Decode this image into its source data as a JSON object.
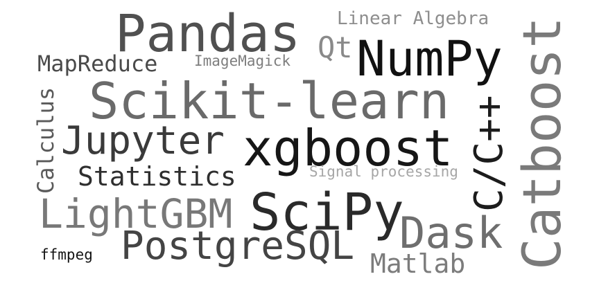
{
  "words": [
    {
      "id": "pandas",
      "text": "Pandas",
      "color": "#505050"
    },
    {
      "id": "numpy",
      "text": "NumPy",
      "color": "#111111"
    },
    {
      "id": "scikit-learn",
      "text": "Scikit-learn",
      "color": "#6a6a6a"
    },
    {
      "id": "xgboost",
      "text": "xgboost",
      "color": "#161616"
    },
    {
      "id": "catboost",
      "text": "Catboost",
      "color": "#7a7a7a"
    },
    {
      "id": "cpp",
      "text": "C/C++",
      "color": "#1c1c1c"
    },
    {
      "id": "jupyter",
      "text": "Jupyter",
      "color": "#3a3a3a"
    },
    {
      "id": "scipy",
      "text": "SciPy",
      "color": "#2a2a2a"
    },
    {
      "id": "lightgbm",
      "text": "LightGBM",
      "color": "#787878"
    },
    {
      "id": "postgresql",
      "text": "PostgreSQL",
      "color": "#444444"
    },
    {
      "id": "dask",
      "text": "Dask",
      "color": "#6e6e6e"
    },
    {
      "id": "matlab",
      "text": "Matlab",
      "color": "#7c7c7c"
    },
    {
      "id": "statistics",
      "text": "Statistics",
      "color": "#2e2e2e"
    },
    {
      "id": "calculus",
      "text": "Calculus",
      "color": "#5a5a5a"
    },
    {
      "id": "mapreduce",
      "text": "MapReduce",
      "color": "#4a4a4a"
    },
    {
      "id": "imagemagick",
      "text": "ImageMagick",
      "color": "#7e7e7e"
    },
    {
      "id": "qt",
      "text": "Qt",
      "color": "#8a8a8a"
    },
    {
      "id": "linear-algebra",
      "text": "Linear Algebra",
      "color": "#8e8e8e"
    },
    {
      "id": "signal-processing",
      "text": "Signal processing",
      "color": "#a6a6a6"
    },
    {
      "id": "ffmpeg",
      "text": "ffmpeg",
      "color": "#141414"
    }
  ]
}
